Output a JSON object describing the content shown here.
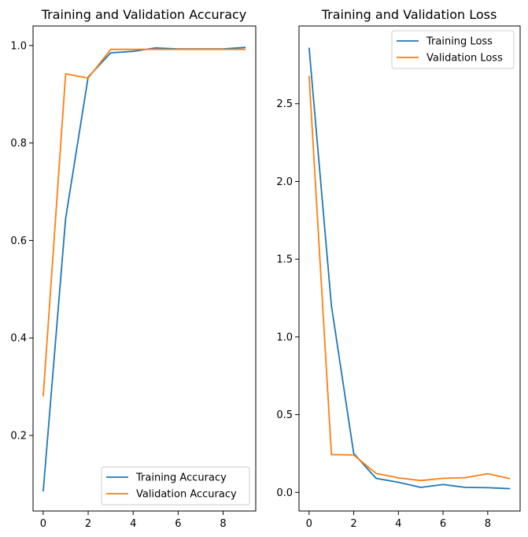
{
  "colors": {
    "training": "#1f77b4",
    "validation": "#ff7f0e",
    "axis": "#000000",
    "legend_border": "#cccccc"
  },
  "chart_data": [
    {
      "type": "line",
      "title": "Training and Validation Accuracy",
      "xlabel": "",
      "ylabel": "",
      "x": [
        0,
        1,
        2,
        3,
        4,
        5,
        6,
        7,
        8,
        9
      ],
      "xlim": [
        -0.45,
        9.45
      ],
      "ylim": [
        0.045,
        1.04
      ],
      "xticks": [
        0,
        2,
        4,
        6,
        8
      ],
      "yticks": [
        0.2,
        0.4,
        0.6,
        0.8,
        1.0
      ],
      "yticklabels": [
        "0.2",
        "0.4",
        "0.6",
        "0.8",
        "1.0"
      ],
      "legend_position": "lower right",
      "grid": false,
      "series": [
        {
          "name": "Training Accuracy",
          "color": "#1f77b4",
          "values": [
            0.085,
            0.645,
            0.935,
            0.985,
            0.988,
            0.995,
            0.993,
            0.993,
            0.993,
            0.996
          ]
        },
        {
          "name": "Validation Accuracy",
          "color": "#ff7f0e",
          "values": [
            0.28,
            0.942,
            0.933,
            0.992,
            0.992,
            0.992,
            0.992,
            0.992,
            0.992,
            0.992
          ]
        }
      ]
    },
    {
      "type": "line",
      "title": "Training and Validation Loss",
      "xlabel": "",
      "ylabel": "",
      "x": [
        0,
        1,
        2,
        3,
        4,
        5,
        6,
        7,
        8,
        9
      ],
      "xlim": [
        -0.45,
        9.45
      ],
      "ylim": [
        -0.12,
        3.0
      ],
      "xticks": [
        0,
        2,
        4,
        6,
        8
      ],
      "yticks": [
        0.0,
        0.5,
        1.0,
        1.5,
        2.0,
        2.5
      ],
      "yticklabels": [
        "0.0",
        "0.5",
        "1.0",
        "1.5",
        "2.0",
        "2.5"
      ],
      "legend_position": "upper right",
      "grid": false,
      "series": [
        {
          "name": "Training Loss",
          "color": "#1f77b4",
          "values": [
            2.86,
            1.2,
            0.25,
            0.09,
            0.065,
            0.032,
            0.05,
            0.032,
            0.03,
            0.024
          ]
        },
        {
          "name": "Validation Loss",
          "color": "#ff7f0e",
          "values": [
            2.68,
            0.243,
            0.24,
            0.122,
            0.093,
            0.076,
            0.09,
            0.095,
            0.12,
            0.088
          ]
        }
      ]
    }
  ]
}
